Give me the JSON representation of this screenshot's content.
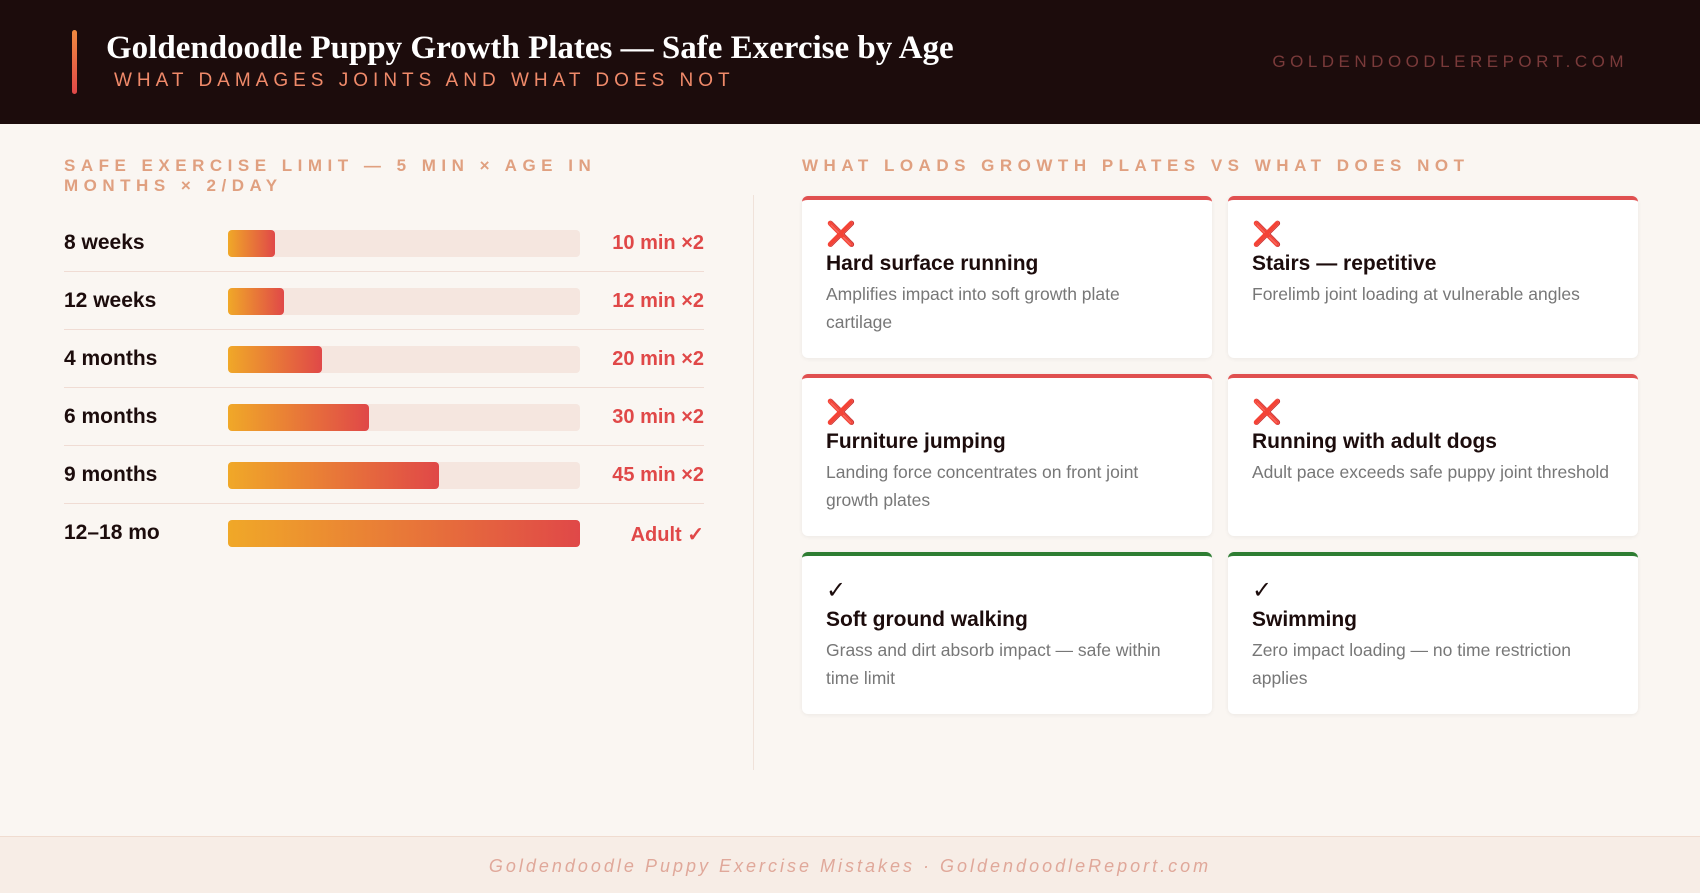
{
  "header": {
    "title": "Goldendoodle Puppy Growth Plates — Safe Exercise by Age",
    "subtitle": "WHAT DAMAGES JOINTS AND WHAT DOES NOT",
    "site": "GOLDENDOODLEREPORT.COM"
  },
  "chart_data": {
    "type": "bar",
    "orientation": "horizontal",
    "title": "SAFE EXERCISE LIMIT — 5 MIN × AGE IN MONTHS × 2/DAY",
    "categories": [
      "8 weeks",
      "12 weeks",
      "4 months",
      "6 months",
      "9 months",
      "12–18 mo"
    ],
    "values": [
      10,
      12,
      20,
      30,
      45,
      75
    ],
    "value_labels": [
      "10 min ×2",
      "12 min ×2",
      "20 min ×2",
      "30 min ×2",
      "45 min ×2",
      "Adult ✓"
    ],
    "xlim": [
      0,
      75
    ],
    "color": [
      "#f0a828",
      "#e04848"
    ]
  },
  "cards_section": {
    "title": "WHAT LOADS GROWTH PLATES VS WHAT DOES NOT",
    "cards": [
      {
        "icon": "❌",
        "title": "Hard surface running",
        "text": "Amplifies impact into soft growth plate cartilage",
        "color": "#e05050"
      },
      {
        "icon": "❌",
        "title": "Stairs — repetitive",
        "text": "Forelimb joint loading at vulnerable angles",
        "color": "#e05050"
      },
      {
        "icon": "❌",
        "title": "Furniture jumping",
        "text": "Landing force concentrates on front joint growth plates",
        "color": "#e05050"
      },
      {
        "icon": "❌",
        "title": "Running with adult dogs",
        "text": "Adult pace exceeds safe puppy joint threshold",
        "color": "#e05050"
      },
      {
        "icon": "✓",
        "title": "Soft ground walking",
        "text": "Grass and dirt absorb impact — safe within time limit",
        "color": "#2e7d32"
      },
      {
        "icon": "✓",
        "title": "Swimming",
        "text": "Zero impact loading — no time restriction applies",
        "color": "#2e7d32"
      }
    ]
  },
  "footer": {
    "text": "Goldendoodle Puppy Exercise Mistakes · GoldendoodleReport.com"
  }
}
